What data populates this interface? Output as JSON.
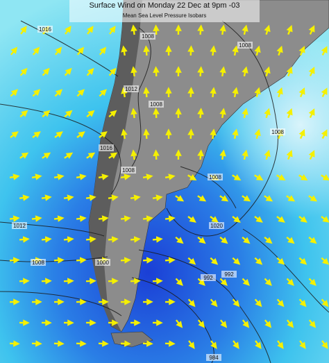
{
  "header": {
    "title": "Surface Wind on Monday 22 Dec at 9pm -03",
    "subtitle": "Mean Sea Level Pressure Isobars"
  },
  "isobar_labels": [
    "1016",
    "1008",
    "1008",
    "1012",
    "1008",
    "1016",
    "1008",
    "1008",
    "1008",
    "1020",
    "1012",
    "1008",
    "1000",
    "992",
    "992",
    "984"
  ]
}
